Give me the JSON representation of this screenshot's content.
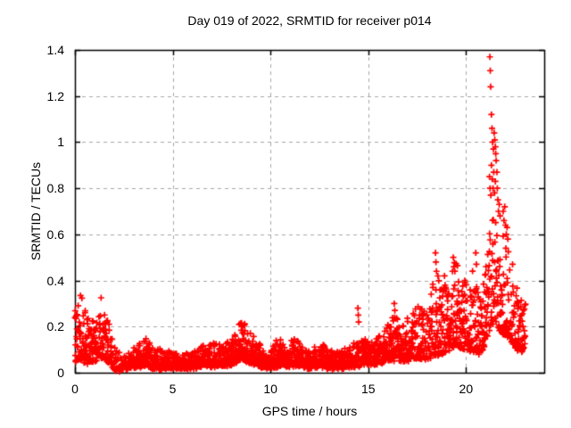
{
  "chart_data": {
    "type": "scatter",
    "title": "Day 019 of 2022, SRMTID for receiver p014",
    "xlabel": "GPS time / hours",
    "ylabel": "SRMTID / TECUs",
    "xlim": [
      0,
      24
    ],
    "ylim": [
      0,
      1.4
    ],
    "xticks": [
      0,
      5,
      10,
      15,
      20
    ],
    "xtick_labels": [
      "0",
      "5",
      "10",
      "15",
      "20"
    ],
    "yticks": [
      0,
      0.2,
      0.4,
      0.6,
      0.8,
      1,
      1.2,
      1.4
    ],
    "ytick_labels": [
      "0",
      "0.2",
      "0.4",
      "0.6",
      "0.8",
      "1",
      "1.2",
      "1.4"
    ],
    "grid": true,
    "legend": null,
    "marker": {
      "shape": "plus",
      "color": "#ff0000",
      "size": 7
    },
    "grid_color": "#a8a8a8",
    "axis_color": "#000000",
    "background": "#ffffff",
    "max_value": 1.37,
    "max_value_hour": 21.3,
    "data_end_hour": 23.05,
    "envelope": [
      [
        0.0,
        0.05,
        0.33,
        1
      ],
      [
        0.3,
        0.06,
        0.35,
        1
      ],
      [
        0.6,
        0.04,
        0.26,
        1
      ],
      [
        1.0,
        0.05,
        0.23,
        1
      ],
      [
        1.3,
        0.07,
        0.34,
        1
      ],
      [
        1.6,
        0.05,
        0.26,
        1
      ],
      [
        1.9,
        0.03,
        0.15,
        0.9
      ],
      [
        2.1,
        0.01,
        0.1,
        0.45
      ],
      [
        2.5,
        0.015,
        0.08,
        0.5
      ],
      [
        2.8,
        0.02,
        0.09,
        1
      ],
      [
        3.2,
        0.025,
        0.12,
        1
      ],
      [
        3.5,
        0.03,
        0.17,
        1
      ],
      [
        3.8,
        0.025,
        0.13,
        1
      ],
      [
        4.2,
        0.02,
        0.1,
        1
      ],
      [
        4.8,
        0.02,
        0.09,
        1
      ],
      [
        5.4,
        0.02,
        0.08,
        1
      ],
      [
        6.0,
        0.02,
        0.09,
        1
      ],
      [
        6.5,
        0.03,
        0.12,
        1
      ],
      [
        7.0,
        0.03,
        0.13,
        1
      ],
      [
        7.6,
        0.03,
        0.12,
        1
      ],
      [
        8.1,
        0.04,
        0.15,
        1
      ],
      [
        8.5,
        0.06,
        0.24,
        1
      ],
      [
        8.8,
        0.05,
        0.21,
        1
      ],
      [
        9.2,
        0.04,
        0.16,
        1
      ],
      [
        9.6,
        0.02,
        0.1,
        1
      ],
      [
        10.0,
        0.02,
        0.11,
        1
      ],
      [
        10.4,
        0.03,
        0.15,
        1
      ],
      [
        10.8,
        0.03,
        0.12,
        1
      ],
      [
        11.2,
        0.03,
        0.16,
        1
      ],
      [
        11.6,
        0.03,
        0.12,
        1
      ],
      [
        12.0,
        0.02,
        0.09,
        1
      ],
      [
        12.5,
        0.03,
        0.13,
        1
      ],
      [
        13.0,
        0.02,
        0.1,
        1
      ],
      [
        13.5,
        0.02,
        0.09,
        1
      ],
      [
        14.0,
        0.025,
        0.11,
        1
      ],
      [
        14.5,
        0.03,
        0.14,
        0.9
      ],
      [
        15.0,
        0.035,
        0.14,
        1
      ],
      [
        15.5,
        0.04,
        0.16,
        1
      ],
      [
        16.0,
        0.05,
        0.21,
        1
      ],
      [
        16.4,
        0.06,
        0.27,
        1
      ],
      [
        16.8,
        0.05,
        0.22,
        1
      ],
      [
        17.2,
        0.06,
        0.25,
        1
      ],
      [
        17.6,
        0.06,
        0.3,
        0.95
      ],
      [
        18.0,
        0.06,
        0.28,
        0.9
      ],
      [
        18.45,
        0.08,
        0.45,
        0.9
      ],
      [
        18.8,
        0.08,
        0.36,
        1
      ],
      [
        19.1,
        0.1,
        0.42,
        1
      ],
      [
        19.45,
        0.11,
        0.5,
        0.95
      ],
      [
        19.8,
        0.1,
        0.42,
        1
      ],
      [
        20.1,
        0.1,
        0.38,
        0.95
      ],
      [
        20.45,
        0.08,
        0.48,
        0.9
      ],
      [
        20.75,
        0.08,
        0.3,
        0.9
      ],
      [
        21.0,
        0.12,
        0.5,
        0.9
      ],
      [
        21.25,
        0.2,
        0.72,
        0.85
      ],
      [
        21.5,
        0.22,
        0.7,
        0.85
      ],
      [
        21.75,
        0.18,
        0.62,
        0.85
      ],
      [
        22.0,
        0.15,
        0.58,
        0.85
      ],
      [
        22.3,
        0.14,
        0.5,
        0.9
      ],
      [
        22.6,
        0.1,
        0.4,
        0.95
      ],
      [
        22.8,
        0.08,
        0.35,
        1
      ],
      [
        23.05,
        0.12,
        0.3,
        0.7
      ]
    ],
    "outliers": [
      [
        2.28,
        0.005
      ],
      [
        2.33,
        0.015
      ],
      [
        14.47,
        0.28
      ],
      [
        14.49,
        0.25
      ],
      [
        14.51,
        0.22
      ],
      [
        16.33,
        0.3
      ],
      [
        16.36,
        0.27
      ],
      [
        18.44,
        0.52
      ],
      [
        18.46,
        0.48
      ],
      [
        18.49,
        0.44
      ],
      [
        18.9,
        0.42
      ],
      [
        18.93,
        0.38
      ],
      [
        19.35,
        0.5
      ],
      [
        19.38,
        0.46
      ],
      [
        20.5,
        0.52
      ],
      [
        20.53,
        0.47
      ],
      [
        21.2,
        0.85
      ],
      [
        21.22,
        1.37
      ],
      [
        21.23,
        0.8
      ],
      [
        21.24,
        1.31
      ],
      [
        21.26,
        1.24
      ],
      [
        21.27,
        0.77
      ],
      [
        21.3,
        1.12
      ],
      [
        21.3,
        0.9
      ],
      [
        21.33,
        1.06
      ],
      [
        21.34,
        0.84
      ],
      [
        21.36,
        1.0
      ],
      [
        21.38,
        0.8
      ],
      [
        21.4,
        0.97
      ],
      [
        21.42,
        0.87
      ],
      [
        21.44,
        1.04
      ],
      [
        21.46,
        0.78
      ],
      [
        21.47,
        1.01
      ],
      [
        21.5,
        0.98
      ],
      [
        21.5,
        0.83
      ],
      [
        21.52,
        0.95
      ],
      [
        21.54,
        0.92
      ],
      [
        21.58,
        0.87
      ],
      [
        21.6,
        0.8
      ],
      [
        21.63,
        0.75
      ],
      [
        21.66,
        0.7
      ],
      [
        21.7,
        0.73
      ],
      [
        21.74,
        0.68
      ],
      [
        21.9,
        0.7
      ],
      [
        21.94,
        0.66
      ],
      [
        21.98,
        0.72
      ],
      [
        22.02,
        0.64
      ],
      [
        22.06,
        0.6
      ],
      [
        22.1,
        0.63
      ],
      [
        22.14,
        0.58
      ]
    ],
    "point_generation": {
      "rate_per_hour": 110,
      "skew": 1.9,
      "seed": 20220119
    }
  }
}
